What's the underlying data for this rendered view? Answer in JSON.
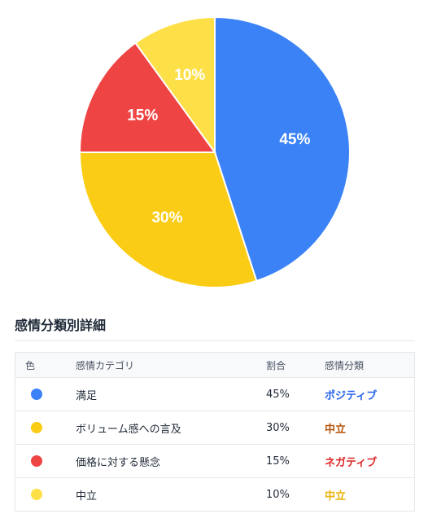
{
  "chart_data": {
    "type": "pie",
    "categories": [
      "満足",
      "ボリューム感への言及",
      "価格に対する懸念",
      "中立"
    ],
    "values": [
      45,
      30,
      15,
      10
    ],
    "labels": [
      "45%",
      "30%",
      "15%",
      "10%"
    ],
    "colors": [
      "#3b82f6",
      "#facc15",
      "#ef4444",
      "#fde047"
    ],
    "title": "",
    "legend": "none"
  },
  "details": {
    "title": "感情分類別詳細",
    "headers": {
      "color": "色",
      "category": "感情カテゴリ",
      "ratio": "割合",
      "classification": "感情分類"
    },
    "rows": [
      {
        "color": "#3b82f6",
        "category": "満足",
        "ratio": "45%",
        "classification": "ポジティブ",
        "class_color": "#2563eb"
      },
      {
        "color": "#facc15",
        "category": "ボリューム感への言及",
        "ratio": "30%",
        "classification": "中立",
        "class_color": "#b45309"
      },
      {
        "color": "#ef4444",
        "category": "価格に対する懸念",
        "ratio": "15%",
        "classification": "ネガティブ",
        "class_color": "#dc2626"
      },
      {
        "color": "#fde047",
        "category": "中立",
        "ratio": "10%",
        "classification": "中立",
        "class_color": "#eab308"
      }
    ]
  }
}
